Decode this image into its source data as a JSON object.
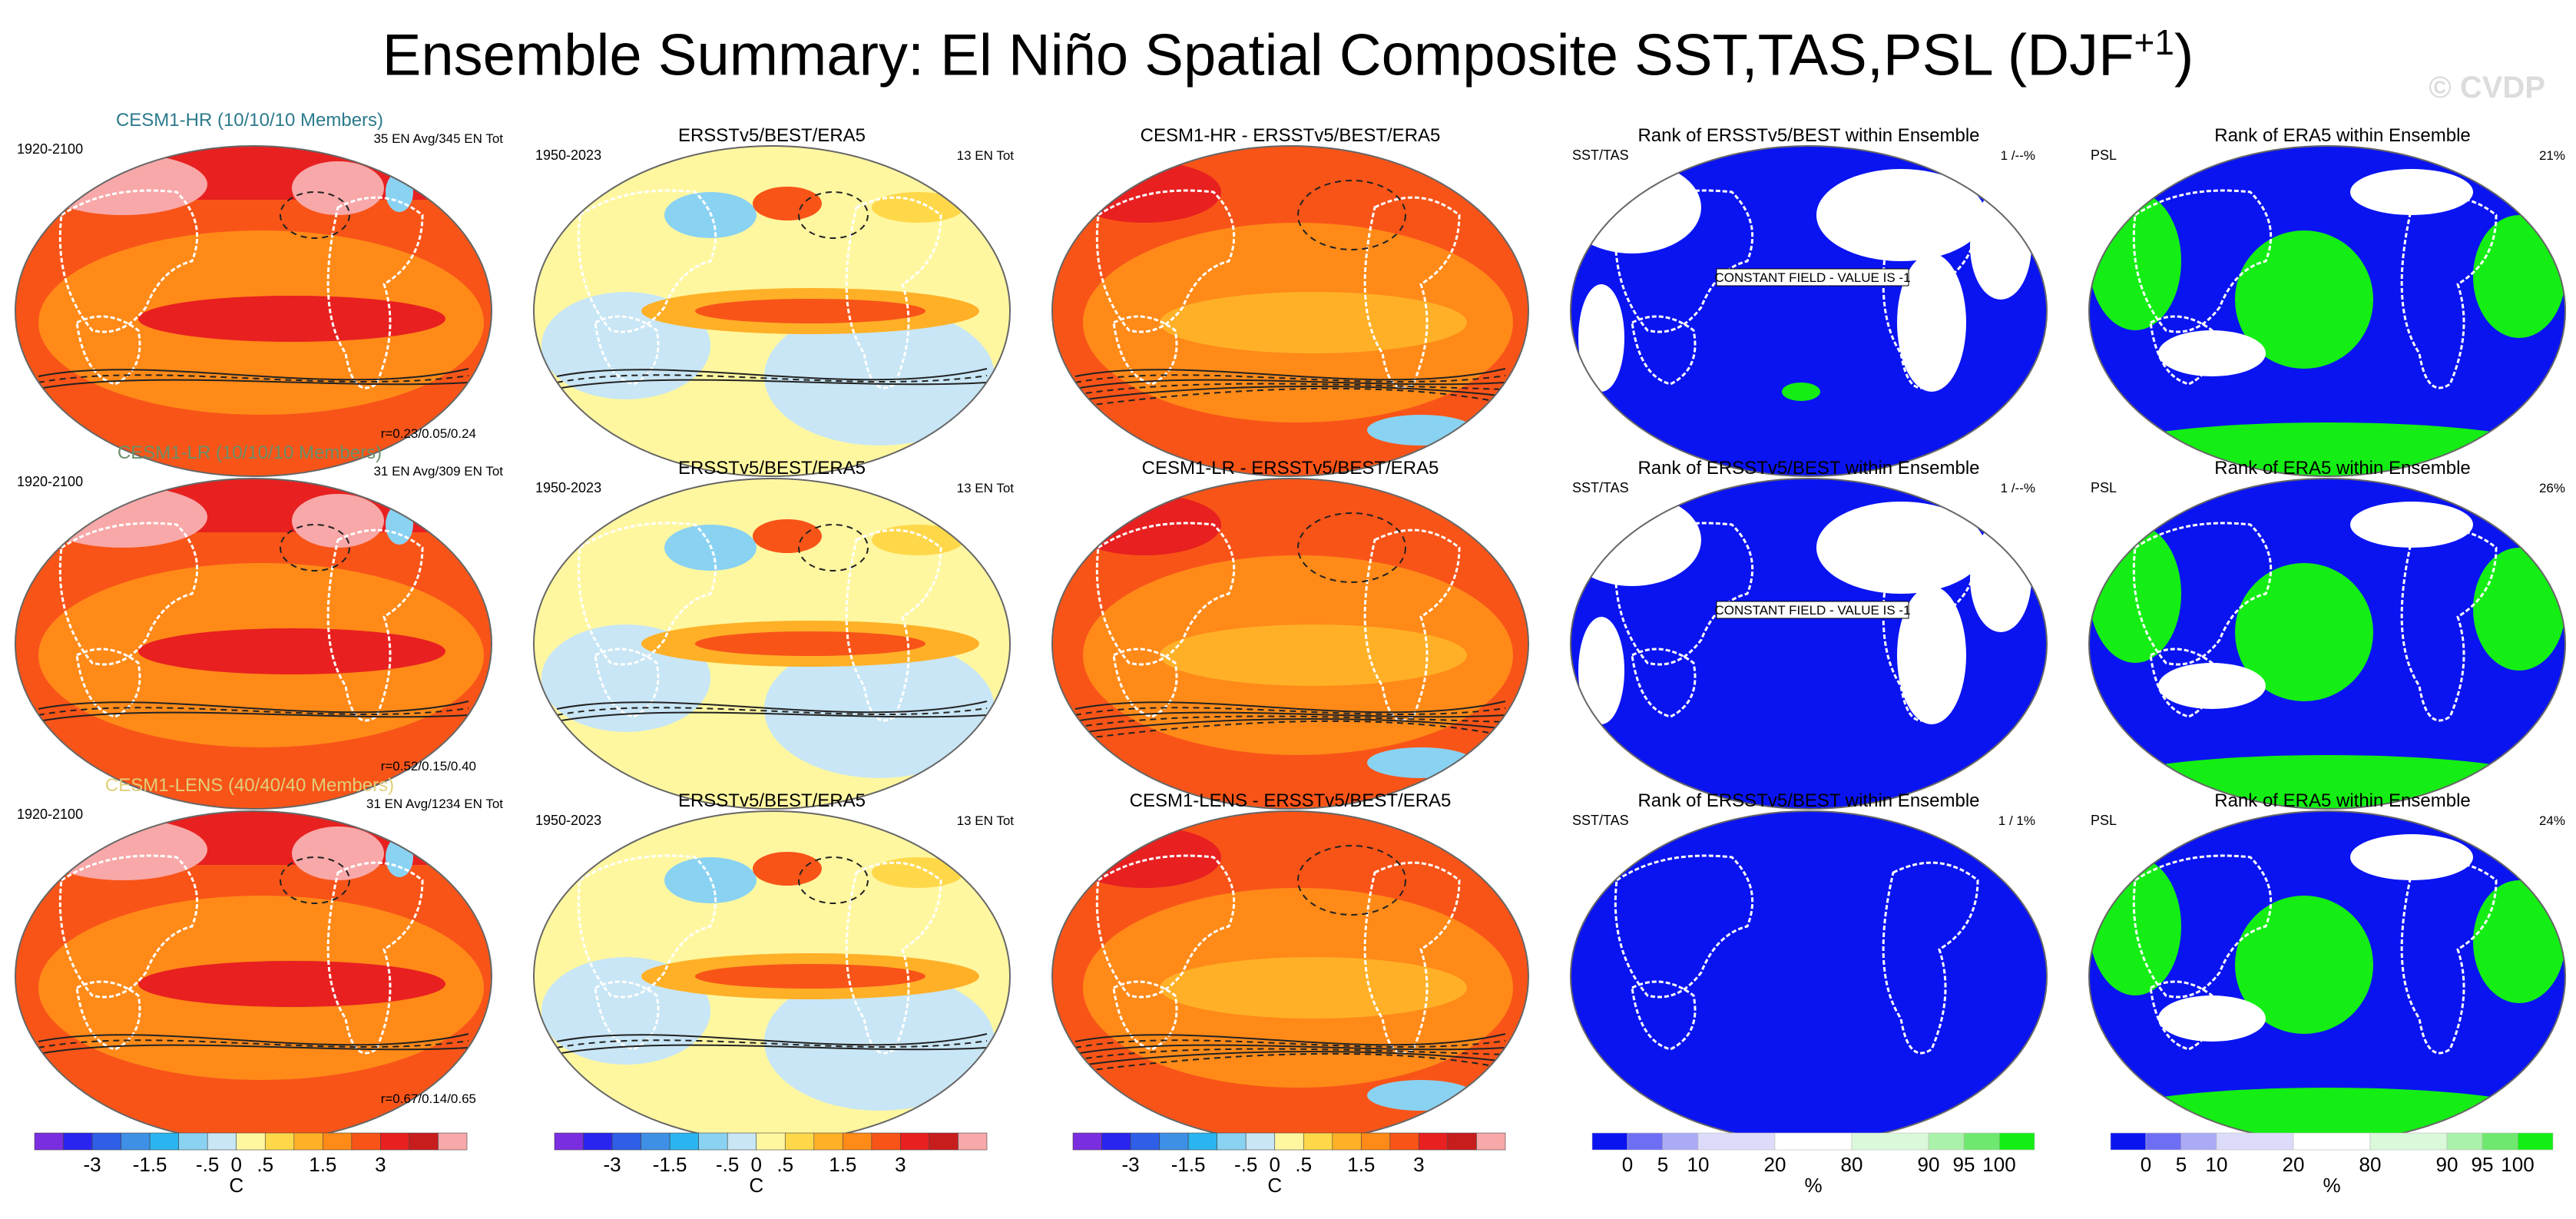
{
  "title": {
    "main": "Ensemble Summary: El Niño Spatial Composite SST,TAS,PSL (DJF",
    "sup": "+1",
    "close": ")"
  },
  "watermark": "© CVDP",
  "rows": [
    {
      "model": {
        "text": "CESM1-HR (10/10/10 Members)",
        "color": "#2b7a8c"
      },
      "years_model": "1920-2100",
      "ens_info": "35 EN Avg/345 EN Tot",
      "corr": "r=0.23/0.05/0.24",
      "obs_title": "ERSSTv5/BEST/ERA5",
      "years_obs": "1950-2023",
      "obs_info": "13 EN Tot",
      "diff_title": "CESM1-HR - ERSSTv5/BEST/ERA5",
      "rank_sst_title": "Rank of ERSSTv5/BEST within Ensemble",
      "rank_sst_label": "SST/TAS",
      "rank_sst_pct": "1 /--%",
      "rank_sst_note": "CONSTANT FIELD - VALUE IS -1",
      "rank_psl_title": "Rank of ERA5 within Ensemble",
      "rank_psl_label": "PSL",
      "rank_psl_pct": "21%"
    },
    {
      "model": {
        "text": "CESM1-LR (10/10/10 Members)",
        "color": "#6a8f6a"
      },
      "years_model": "1920-2100",
      "ens_info": "31 EN Avg/309 EN Tot",
      "corr": "r=0.52/0.15/0.40",
      "obs_title": "ERSSTv5/BEST/ERA5",
      "years_obs": "1950-2023",
      "obs_info": "13 EN Tot",
      "diff_title": "CESM1-LR - ERSSTv5/BEST/ERA5",
      "rank_sst_title": "Rank of ERSSTv5/BEST within Ensemble",
      "rank_sst_label": "SST/TAS",
      "rank_sst_pct": "1 /--%",
      "rank_sst_note": "CONSTANT FIELD - VALUE IS -1",
      "rank_psl_title": "Rank of ERA5 within Ensemble",
      "rank_psl_label": "PSL",
      "rank_psl_pct": "26%"
    },
    {
      "model": {
        "text": "CESM1-LENS (40/40/40 Members)",
        "color": "#e0cf7a"
      },
      "years_model": "1920-2100",
      "ens_info": "31 EN Avg/1234 EN Tot",
      "corr": "r=0.67/0.14/0.65",
      "obs_title": "ERSSTv5/BEST/ERA5",
      "years_obs": "1950-2023",
      "obs_info": "13 EN Tot",
      "diff_title": "CESM1-LENS - ERSSTv5/BEST/ERA5",
      "rank_sst_title": "Rank of ERSSTv5/BEST within Ensemble",
      "rank_sst_label": "SST/TAS",
      "rank_sst_pct": "1 /   1%",
      "rank_sst_note": "",
      "rank_psl_title": "Rank of ERA5 within Ensemble",
      "rank_psl_label": "PSL",
      "rank_psl_pct": "24%"
    }
  ],
  "colorbars": {
    "temperature": {
      "colors": [
        "#7a2ee0",
        "#2a24f0",
        "#2e5fe6",
        "#3e8fe6",
        "#2ab5f0",
        "#8ad2f2",
        "#c8e6f5",
        "#fff7a0",
        "#ffd84a",
        "#ffb027",
        "#ff8a18",
        "#f85418",
        "#e82020",
        "#c81d1d",
        "#f8a8a8"
      ],
      "labels": [
        "-3",
        "-1.5",
        "-.5",
        "0",
        ".5",
        "1.5",
        "3"
      ],
      "unit": "C"
    },
    "rank": {
      "colors": [
        "#0a14f0",
        "#6e6ef5",
        "#aaaaf5",
        "#dcdcfa",
        "#ffffff",
        "#daf8da",
        "#aaf2aa",
        "#6ee86e",
        "#14ee14"
      ],
      "labels": [
        "0",
        "5",
        "10",
        "20",
        "80",
        "90",
        "95",
        "100"
      ],
      "unit": "%"
    }
  },
  "chart_data": [
    {
      "type": "heatmap",
      "panel": "model composite",
      "title": "CESM1-HR (10/10/10 Members)",
      "variables": [
        "SST",
        "TAS",
        "PSL"
      ],
      "period": "1920-2100",
      "ensemble": "35 EN Avg/345 EN Tot",
      "pattern_correlation": [
        0.23,
        0.05,
        0.24
      ],
      "units": "C",
      "levels": [
        -3,
        -1.5,
        -0.5,
        0,
        0.5,
        1.5,
        3
      ]
    },
    {
      "type": "heatmap",
      "panel": "observations",
      "title": "ERSSTv5/BEST/ERA5",
      "period": "1950-2023",
      "events": "13 EN Tot",
      "units": "C"
    },
    {
      "type": "heatmap",
      "panel": "difference",
      "title": "CESM1-HR - ERSSTv5/BEST/ERA5",
      "units": "C"
    },
    {
      "type": "heatmap",
      "panel": "rank SST/TAS",
      "title": "Rank of ERSSTv5/BEST within Ensemble",
      "value": "1 /--%",
      "note": "CONSTANT FIELD - VALUE IS -1",
      "units": "%",
      "levels": [
        0,
        5,
        10,
        20,
        80,
        90,
        95,
        100
      ]
    },
    {
      "type": "heatmap",
      "panel": "rank PSL",
      "title": "Rank of ERA5 within Ensemble",
      "value_percent": 21,
      "units": "%"
    },
    {
      "type": "heatmap",
      "panel": "model composite",
      "title": "CESM1-LR (10/10/10 Members)",
      "variables": [
        "SST",
        "TAS",
        "PSL"
      ],
      "period": "1920-2100",
      "ensemble": "31 EN Avg/309 EN Tot",
      "pattern_correlation": [
        0.52,
        0.15,
        0.4
      ],
      "units": "C"
    },
    {
      "type": "heatmap",
      "panel": "observations",
      "title": "ERSSTv5/BEST/ERA5",
      "period": "1950-2023",
      "events": "13 EN Tot",
      "units": "C"
    },
    {
      "type": "heatmap",
      "panel": "difference",
      "title": "CESM1-LR - ERSSTv5/BEST/ERA5",
      "units": "C"
    },
    {
      "type": "heatmap",
      "panel": "rank SST/TAS",
      "title": "Rank of ERSSTv5/BEST within Ensemble",
      "value": "1 /--%",
      "note": "CONSTANT FIELD - VALUE IS -1",
      "units": "%"
    },
    {
      "type": "heatmap",
      "panel": "rank PSL",
      "title": "Rank of ERA5 within Ensemble",
      "value_percent": 26,
      "units": "%"
    },
    {
      "type": "heatmap",
      "panel": "model composite",
      "title": "CESM1-LENS (40/40/40 Members)",
      "variables": [
        "SST",
        "TAS",
        "PSL"
      ],
      "period": "1920-2100",
      "ensemble": "31 EN Avg/1234 EN Tot",
      "pattern_correlation": [
        0.67,
        0.14,
        0.65
      ],
      "units": "C"
    },
    {
      "type": "heatmap",
      "panel": "observations",
      "title": "ERSSTv5/BEST/ERA5",
      "period": "1950-2023",
      "events": "13 EN Tot",
      "units": "C"
    },
    {
      "type": "heatmap",
      "panel": "difference",
      "title": "CESM1-LENS - ERSSTv5/BEST/ERA5",
      "units": "C"
    },
    {
      "type": "heatmap",
      "panel": "rank SST/TAS",
      "title": "Rank of ERSSTv5/BEST within Ensemble",
      "value": "1 /   1%",
      "units": "%"
    },
    {
      "type": "heatmap",
      "panel": "rank PSL",
      "title": "Rank of ERA5 within Ensemble",
      "value_percent": 24,
      "units": "%"
    }
  ]
}
